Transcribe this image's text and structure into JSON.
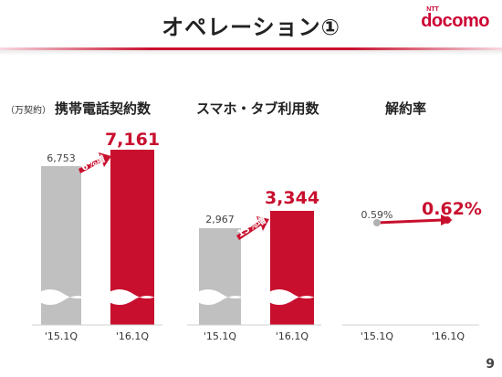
{
  "page": {
    "title": "オペレーション①",
    "logo": {
      "small": "NTT",
      "main": "docomo"
    },
    "page_number": "9"
  },
  "colors": {
    "accent": "#c8102e",
    "gray_bar": "#c0c0c0",
    "text": "#222222"
  },
  "chart_data": [
    {
      "type": "bar",
      "unit_label": "（万契約）",
      "title": "携帯電話契約数",
      "categories": [
        "'15.1Q",
        "'16.1Q"
      ],
      "values": [
        6753,
        7161
      ],
      "value_labels": [
        "6,753",
        "7,161"
      ],
      "growth_label": "6%増",
      "axis_break": true
    },
    {
      "type": "bar",
      "title": "スマホ・タブ利用数",
      "categories": [
        "'15.1Q",
        "'16.1Q"
      ],
      "values": [
        2967,
        3344
      ],
      "value_labels": [
        "2,967",
        "3,344"
      ],
      "growth_label": "13%増",
      "axis_break": true
    },
    {
      "type": "line",
      "title": "解約率",
      "categories": [
        "'15.1Q",
        "'16.1Q"
      ],
      "values": [
        0.59,
        0.62
      ],
      "value_labels": [
        "0.59%",
        "0.62%"
      ]
    }
  ]
}
